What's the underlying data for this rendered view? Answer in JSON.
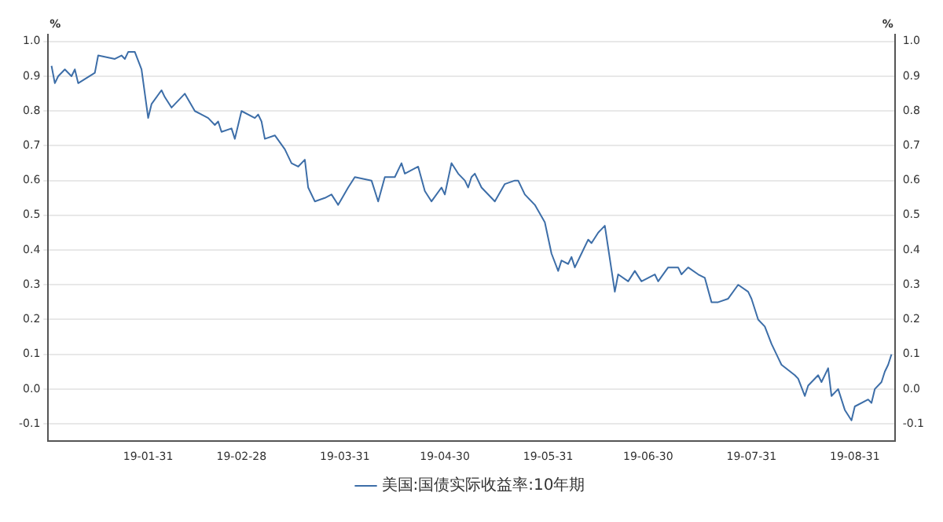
{
  "chart_data": {
    "type": "line",
    "ylabel": "%",
    "y2label": "%",
    "x": [
      "--01-02",
      "--01-03",
      "--01-04",
      "--01-06",
      "--01-08",
      "--01-09",
      "--01-10",
      "--01-15",
      "--01-16",
      "--01-21",
      "--01-23",
      "--01-24",
      "--01-25",
      "--01-27",
      "--01-29",
      "--01-31",
      "--02-01",
      "--02-04",
      "--02-05",
      "--02-07",
      "--02-11",
      "--02-14",
      "--02-18",
      "--02-20",
      "--02-21",
      "--02-22",
      "--02-25",
      "--02-26",
      "--02-28",
      "--03-04",
      "--03-05",
      "--03-06",
      "--03-07",
      "--03-10",
      "--03-13",
      "--03-15",
      "--03-17",
      "--03-19",
      "--03-20",
      "--03-22",
      "--03-25",
      "--03-27",
      "--03-29",
      "--04-01",
      "--04-03",
      "--04-08",
      "--04-10",
      "--04-12",
      "--04-15",
      "--04-17",
      "--04-18",
      "--04-22",
      "--04-24",
      "--04-26",
      "--04-29",
      "--04-30",
      "--05-02",
      "--05-04",
      "--05-06",
      "--05-07",
      "--05-08",
      "--05-09",
      "--05-11",
      "--05-14",
      "--05-15",
      "--05-18",
      "--05-21",
      "--05-22",
      "--05-24",
      "--05-27",
      "--05-30",
      "--06-01",
      "--06-03",
      "--06-04",
      "--06-06",
      "--06-07",
      "--06-08",
      "--06-10",
      "--06-12",
      "--06-13",
      "--06-15",
      "--06-17",
      "--06-20",
      "--06-21",
      "--06-24",
      "--06-26",
      "--06-28",
      "--07-02",
      "--07-03",
      "--07-06",
      "--07-09",
      "--07-10",
      "--07-12",
      "--07-15",
      "--07-17",
      "--07-19",
      "--07-21",
      "--07-24",
      "--07-27",
      "--07-30",
      "--07-31",
      "--08-02",
      "--08-04",
      "--08-06",
      "--08-08",
      "--08-09",
      "--08-13",
      "--08-14",
      "--08-16",
      "--08-17",
      "--08-20",
      "--08-21",
      "--08-23",
      "--08-24",
      "--08-26",
      "--08-28",
      "--08-30",
      "--08-31",
      "--09-04",
      "--09-05",
      "--09-06",
      "--09-08",
      "--09-09",
      "--09-10",
      "--09-11"
    ],
    "series": [
      {
        "name": "美国:国债实际收益率:10年期",
        "color": "#3d6ea8",
        "values": [
          0.93,
          0.88,
          0.9,
          0.92,
          0.9,
          0.92,
          0.88,
          0.91,
          0.96,
          0.95,
          0.96,
          0.95,
          0.97,
          0.97,
          0.92,
          0.78,
          0.82,
          0.86,
          0.84,
          0.81,
          0.85,
          0.8,
          0.78,
          0.76,
          0.77,
          0.74,
          0.75,
          0.72,
          0.8,
          0.78,
          0.79,
          0.77,
          0.72,
          0.73,
          0.69,
          0.65,
          0.64,
          0.66,
          0.58,
          0.54,
          0.55,
          0.56,
          0.53,
          0.58,
          0.61,
          0.6,
          0.54,
          0.61,
          0.61,
          0.65,
          0.62,
          0.64,
          0.57,
          0.54,
          0.58,
          0.56,
          0.65,
          0.62,
          0.6,
          0.58,
          0.61,
          0.62,
          0.58,
          0.55,
          0.54,
          0.59,
          0.6,
          0.6,
          0.56,
          0.53,
          0.48,
          0.39,
          0.34,
          0.37,
          0.36,
          0.38,
          0.35,
          0.39,
          0.43,
          0.42,
          0.45,
          0.47,
          0.28,
          0.33,
          0.31,
          0.34,
          0.31,
          0.33,
          0.31,
          0.35,
          0.35,
          0.33,
          0.35,
          0.33,
          0.32,
          0.25,
          0.25,
          0.26,
          0.3,
          0.28,
          0.26,
          0.2,
          0.18,
          0.13,
          0.09,
          0.07,
          0.04,
          0.03,
          -0.02,
          0.01,
          0.04,
          0.02,
          0.06,
          -0.02,
          0,
          -0.06,
          -0.09,
          -0.05,
          -0.03,
          -0.04,
          0,
          0.02,
          0.05,
          0.07,
          0.1
        ]
      }
    ],
    "xlim": [
      "--01-01",
      "--09-12"
    ],
    "xticks": [
      {
        "value": "--01-31",
        "label": "19-01-31"
      },
      {
        "value": "--02-28",
        "label": "19-02-28"
      },
      {
        "value": "--03-31",
        "label": "19-03-31"
      },
      {
        "value": "--04-30",
        "label": "19-04-30"
      },
      {
        "value": "--05-31",
        "label": "19-05-31"
      },
      {
        "value": "--06-30",
        "label": "19-06-30"
      },
      {
        "value": "--07-31",
        "label": "19-07-31"
      },
      {
        "value": "--08-31",
        "label": "19-08-31"
      }
    ],
    "ylim": [
      -0.15,
      1.02
    ],
    "yticks": [
      -0.1,
      {
        "value": 0,
        "label": "0.0"
      },
      0.1,
      0.2,
      0.3,
      0.4,
      0.5,
      0.6,
      0.7,
      0.8,
      0.9,
      {
        "value": 1,
        "label": "1.0"
      }
    ],
    "y2lim": [
      -0.15,
      1.02
    ],
    "y2ticks": [
      -0.1,
      {
        "value": 0,
        "label": "0.0"
      },
      0.1,
      0.2,
      0.3,
      0.4,
      0.5,
      0.6,
      0.7,
      0.8,
      0.9,
      {
        "value": 1,
        "label": "1.0"
      }
    ],
    "grid": "y",
    "legend": "bottom",
    "marker": "none",
    "line_style": "solid"
  }
}
